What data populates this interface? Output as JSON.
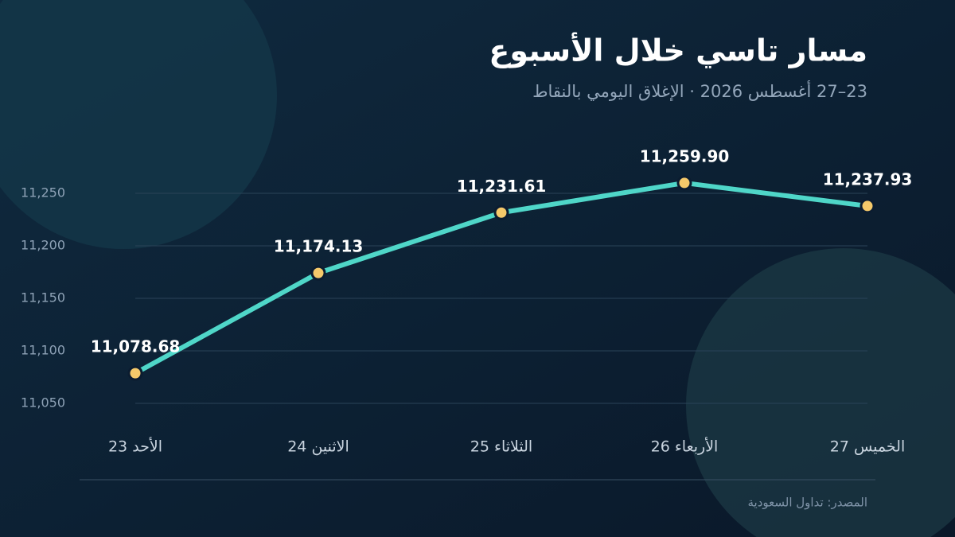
{
  "chart_data": {
    "type": "line",
    "title": "مسار تاسي خلال الأسبوع",
    "subtitle": "23–27 أغسطس 2026 · الإغلاق اليومي بالنقاط",
    "source": "المصدر: تداول السعودية",
    "categories": [
      "الأحد 23",
      "الاثنين 24",
      "الثلاثاء 25",
      "الأربعاء 26",
      "الخميس 27"
    ],
    "values": [
      11078.68,
      11174.13,
      11231.61,
      11259.9,
      11237.93
    ],
    "value_labels": [
      "11,078.68",
      "11,174.13",
      "11,231.61",
      "11,259.90",
      "11,237.93"
    ],
    "color": "#4fd6c8",
    "marker_color": "#f5c96a",
    "ylim": [
      11030,
      11280
    ],
    "yticks": [
      {
        "value": 11050,
        "label": "11,050"
      },
      {
        "value": 11100,
        "label": "11,100"
      },
      {
        "value": 11150,
        "label": "11,150"
      },
      {
        "value": 11200,
        "label": "11,200"
      },
      {
        "value": 11250,
        "label": "11,250"
      }
    ],
    "grid": true
  }
}
